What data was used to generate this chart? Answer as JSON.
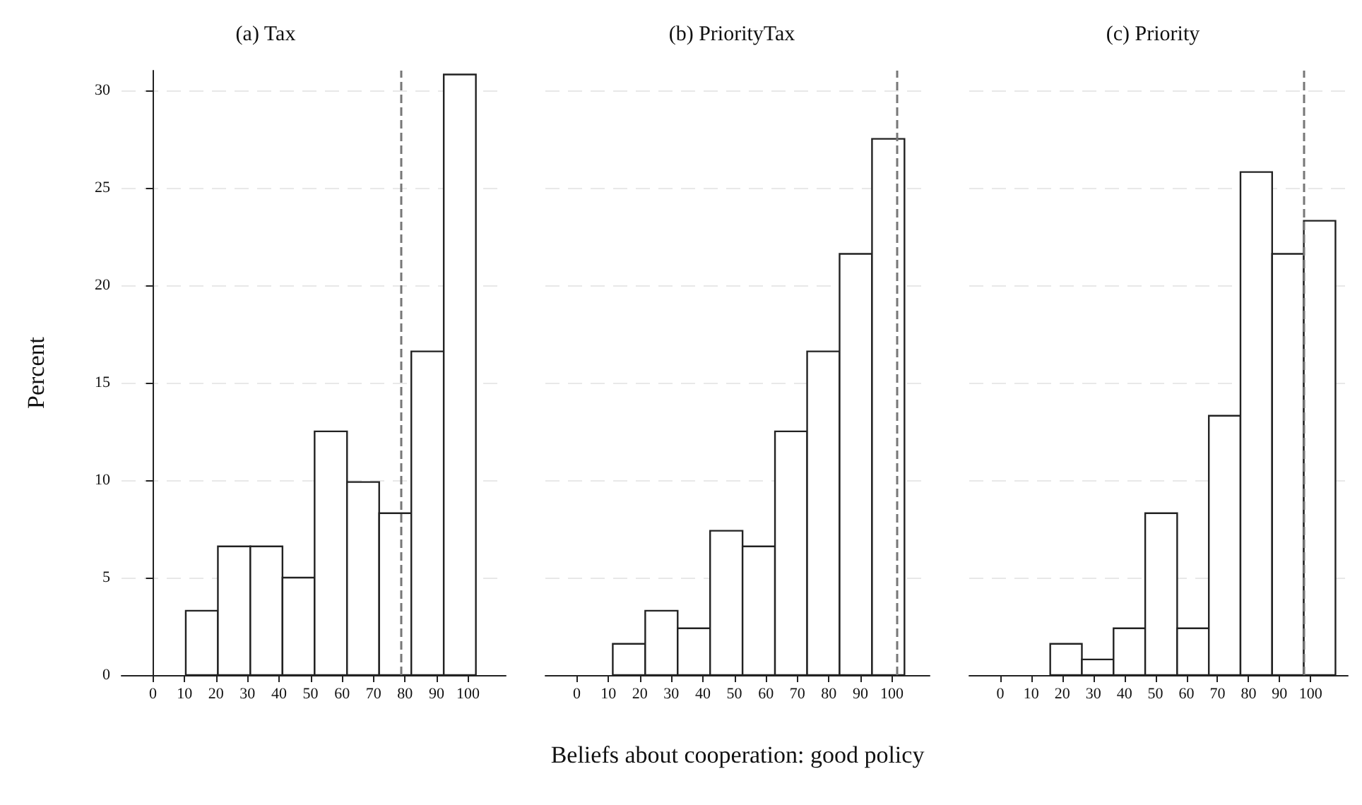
{
  "chart_data": [
    {
      "type": "histogram",
      "title": "(a) Tax",
      "ylabel": "Percent",
      "bins": [
        10.4,
        20.6,
        30.9,
        41.1,
        51.3,
        61.6,
        71.8,
        82.0,
        92.3,
        102.5
      ],
      "values": [
        3.3,
        6.6,
        6.6,
        5.0,
        12.5,
        9.9,
        8.3,
        16.6,
        30.8
      ],
      "color": "#ffffff",
      "xlim": [
        -10,
        112
      ],
      "xticks": [
        0,
        10,
        20,
        30,
        40,
        50,
        60,
        70,
        80,
        90,
        100
      ],
      "ylim": [
        0,
        31
      ],
      "yticks": [
        0,
        5,
        10,
        15,
        20,
        25,
        30
      ],
      "grid": "y",
      "ref_lines": [
        {
          "axis": "x",
          "value": 78.5,
          "color": "#777777",
          "line_style": "dashed"
        }
      ]
    },
    {
      "type": "histogram",
      "title": "(b) PriorityTax",
      "xlabel": "Beliefs about cooperation: good policy",
      "bins": [
        11.4,
        21.7,
        32.0,
        42.3,
        52.6,
        62.9,
        73.1,
        83.4,
        93.7,
        104.0
      ],
      "values": [
        1.6,
        3.3,
        2.4,
        7.4,
        6.6,
        12.5,
        16.6,
        21.6,
        27.5
      ],
      "color": "#ffffff",
      "xlim": [
        -10,
        112
      ],
      "xticks": [
        0,
        10,
        20,
        30,
        40,
        50,
        60,
        70,
        80,
        90,
        100
      ],
      "ylim": [
        0,
        31
      ],
      "yticks": [
        0,
        5,
        10,
        15,
        20,
        25,
        30
      ],
      "grid": "y",
      "tick_labels": "x",
      "ref_lines": [
        {
          "axis": "x",
          "value": 101.6,
          "color": "#777777",
          "line_style": "dashed"
        }
      ]
    },
    {
      "type": "histogram",
      "title": "(c) Priority",
      "bins": [
        16.1,
        26.3,
        36.5,
        46.7,
        57.0,
        67.2,
        77.4,
        87.6,
        97.8,
        108.0
      ],
      "values": [
        1.6,
        0.8,
        2.4,
        8.3,
        2.4,
        13.3,
        25.8,
        21.6,
        23.3
      ],
      "color": "#ffffff",
      "xlim": [
        -10,
        112
      ],
      "xticks": [
        0,
        10,
        20,
        30,
        40,
        50,
        60,
        70,
        80,
        90,
        100
      ],
      "ylim": [
        0,
        31
      ],
      "yticks": [
        0,
        5,
        10,
        15,
        20,
        25,
        30
      ],
      "grid": "y",
      "tick_labels": "x",
      "ref_lines": [
        {
          "axis": "x",
          "value": 97.8,
          "color": "#777777",
          "line_style": "dashed"
        }
      ]
    }
  ]
}
